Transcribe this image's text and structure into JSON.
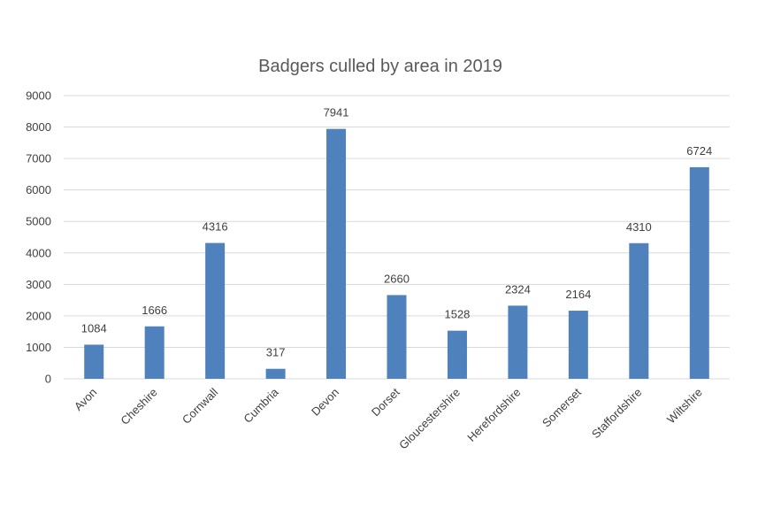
{
  "chart_data": {
    "type": "bar",
    "title": "Badgers culled by area in 2019",
    "xlabel": "",
    "ylabel": "",
    "categories": [
      "Avon",
      "Cheshire",
      "Cornwall",
      "Cumbria",
      "Devon",
      "Dorset",
      "Gloucestershire",
      "Herefordshire",
      "Somerset",
      "Staffordshire",
      "Wiltshire"
    ],
    "values": [
      1084,
      1666,
      4316,
      317,
      7941,
      2660,
      1528,
      2324,
      2164,
      4310,
      6724
    ],
    "ylim": [
      0,
      9000
    ],
    "yticks": [
      0,
      1000,
      2000,
      3000,
      4000,
      5000,
      6000,
      7000,
      8000,
      9000
    ],
    "grid": true,
    "legend": "none",
    "data_labels": true,
    "bar_color": "#4f81bd"
  }
}
